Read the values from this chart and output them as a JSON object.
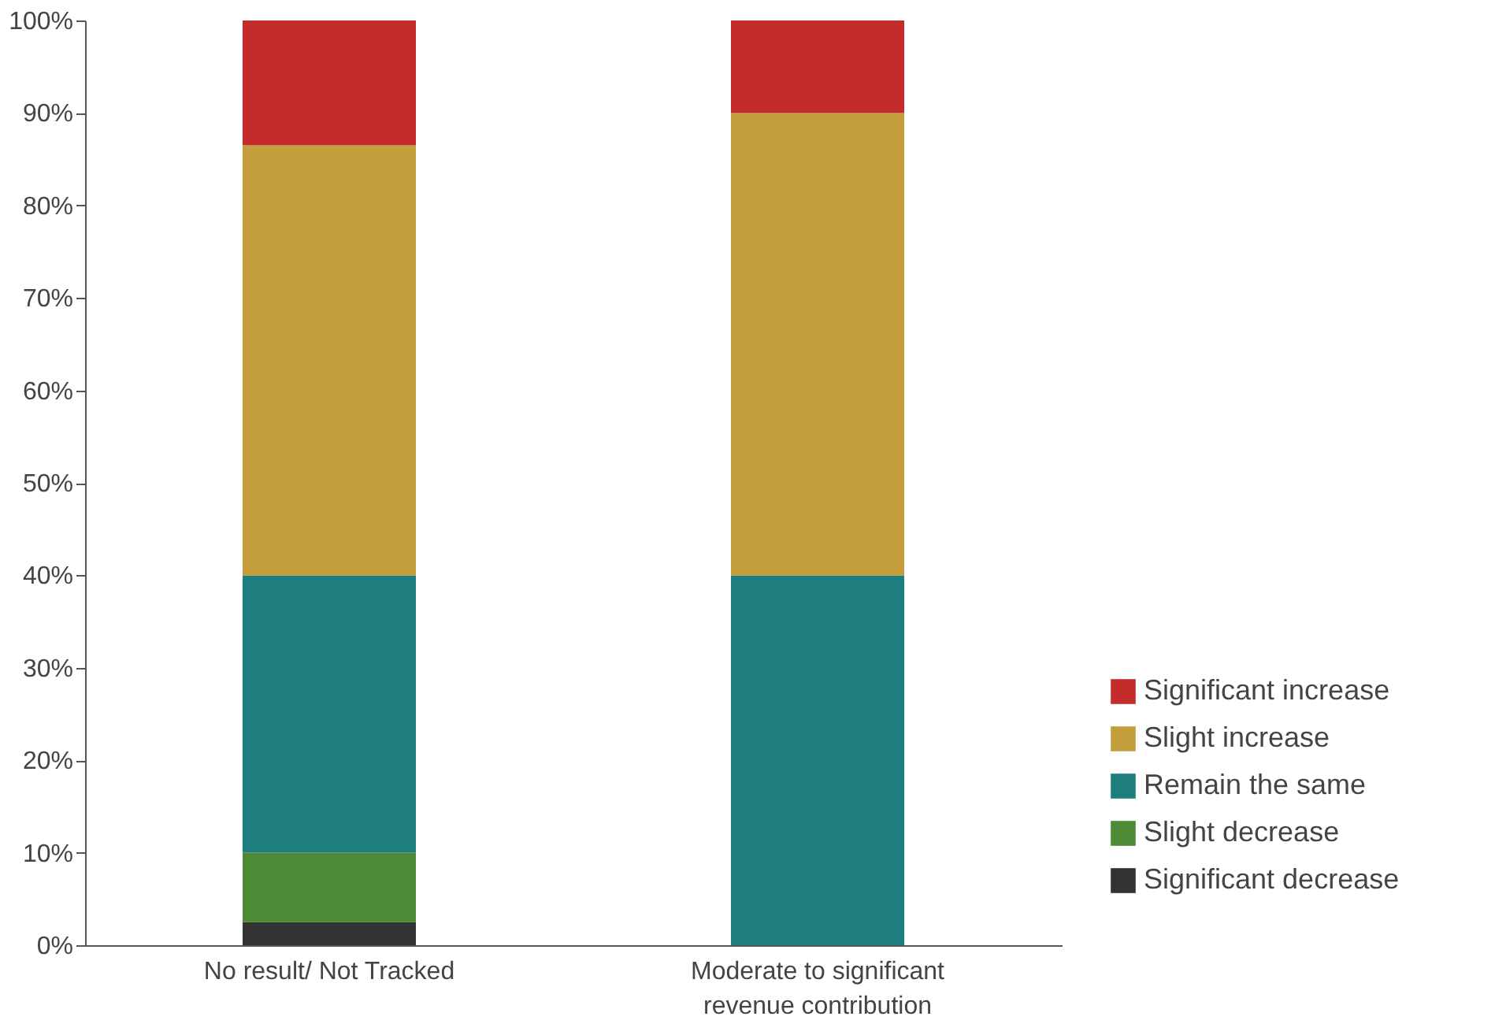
{
  "chart_data": {
    "type": "bar",
    "stacked": true,
    "categories": [
      "No result/ Not Tracked",
      "Moderate to significant revenue contribution"
    ],
    "series": [
      {
        "name": "Significant decrease",
        "color": "#333333",
        "values": [
          2.5,
          null
        ]
      },
      {
        "name": "Slight decrease",
        "color": "#4e8a35",
        "values": [
          7.5,
          null
        ]
      },
      {
        "name": "Remain the same",
        "color": "#1e7d7d",
        "values": [
          30,
          40
        ]
      },
      {
        "name": "Slight increase",
        "color": "#c49e3a",
        "values": [
          46.5,
          50
        ]
      },
      {
        "name": "Significant increase",
        "color": "#c42c2c",
        "values": [
          13.5,
          10
        ]
      }
    ],
    "ylim": [
      0,
      100
    ],
    "yticks": [
      {
        "value": 0,
        "label": "0%"
      },
      {
        "value": 10,
        "label": "10%"
      },
      {
        "value": 20,
        "label": "20%"
      },
      {
        "value": 30,
        "label": "30%"
      },
      {
        "value": 40,
        "label": "40%"
      },
      {
        "value": 50,
        "label": "50%"
      },
      {
        "value": 60,
        "label": "60%"
      },
      {
        "value": 70,
        "label": "70%"
      },
      {
        "value": 80,
        "label": "80%"
      },
      {
        "value": 90,
        "label": "90%"
      },
      {
        "value": 100,
        "label": "100%"
      }
    ],
    "grid": false,
    "legend": "bottom right"
  }
}
